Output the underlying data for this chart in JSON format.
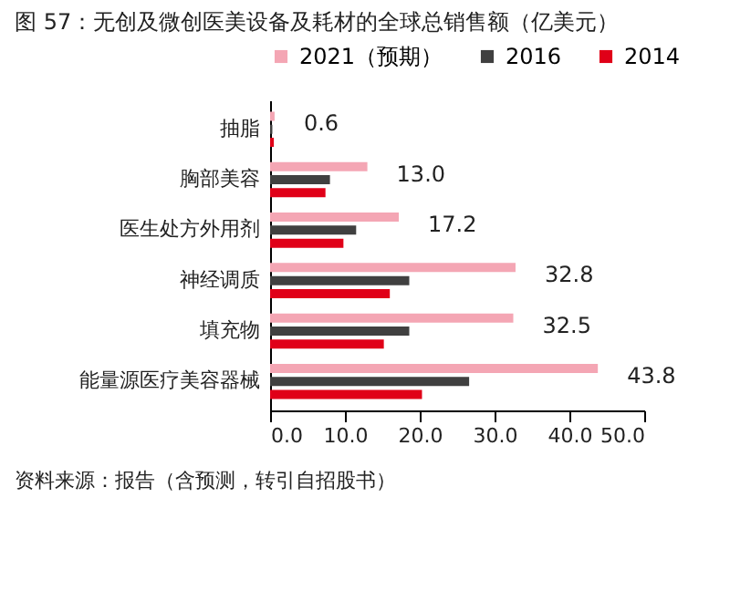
{
  "chart_data": {
    "type": "bar",
    "orientation": "horizontal",
    "title": "图 57：无创及微创医美设备及耗材的全球总销售额（亿美元）",
    "categories": [
      "抽脂",
      "胸部美容",
      "医生处方外用剂",
      "神经调质",
      "填充物",
      "能量源医疗美容器械"
    ],
    "series": [
      {
        "name": "2021（预期）",
        "color": "#f4a6b4",
        "values": [
          0.6,
          13.0,
          17.2,
          32.8,
          32.5,
          43.8
        ],
        "value_labels": [
          "0.6",
          "13.0",
          "17.2",
          "32.8",
          "32.5",
          "43.8"
        ]
      },
      {
        "name": "2016",
        "color": "#404040",
        "values": [
          0.3,
          8.0,
          11.5,
          18.6,
          18.6,
          26.6
        ]
      },
      {
        "name": "2014",
        "color": "#e00018",
        "values": [
          0.5,
          7.4,
          9.8,
          16.0,
          15.2,
          20.3
        ]
      }
    ],
    "xlim": [
      0,
      50
    ],
    "xticks": [
      {
        "value": 0,
        "label": "0.0"
      },
      {
        "value": 10,
        "label": "10.0"
      },
      {
        "value": 20,
        "label": "20.0"
      },
      {
        "value": 30,
        "label": "30.0"
      },
      {
        "value": 40,
        "label": "40.0"
      },
      {
        "value": 50,
        "label": "50.0"
      }
    ],
    "grid": false,
    "legend": "top",
    "annotations": [
      "资料来源：报告（含预测，转引自招股书）"
    ]
  }
}
